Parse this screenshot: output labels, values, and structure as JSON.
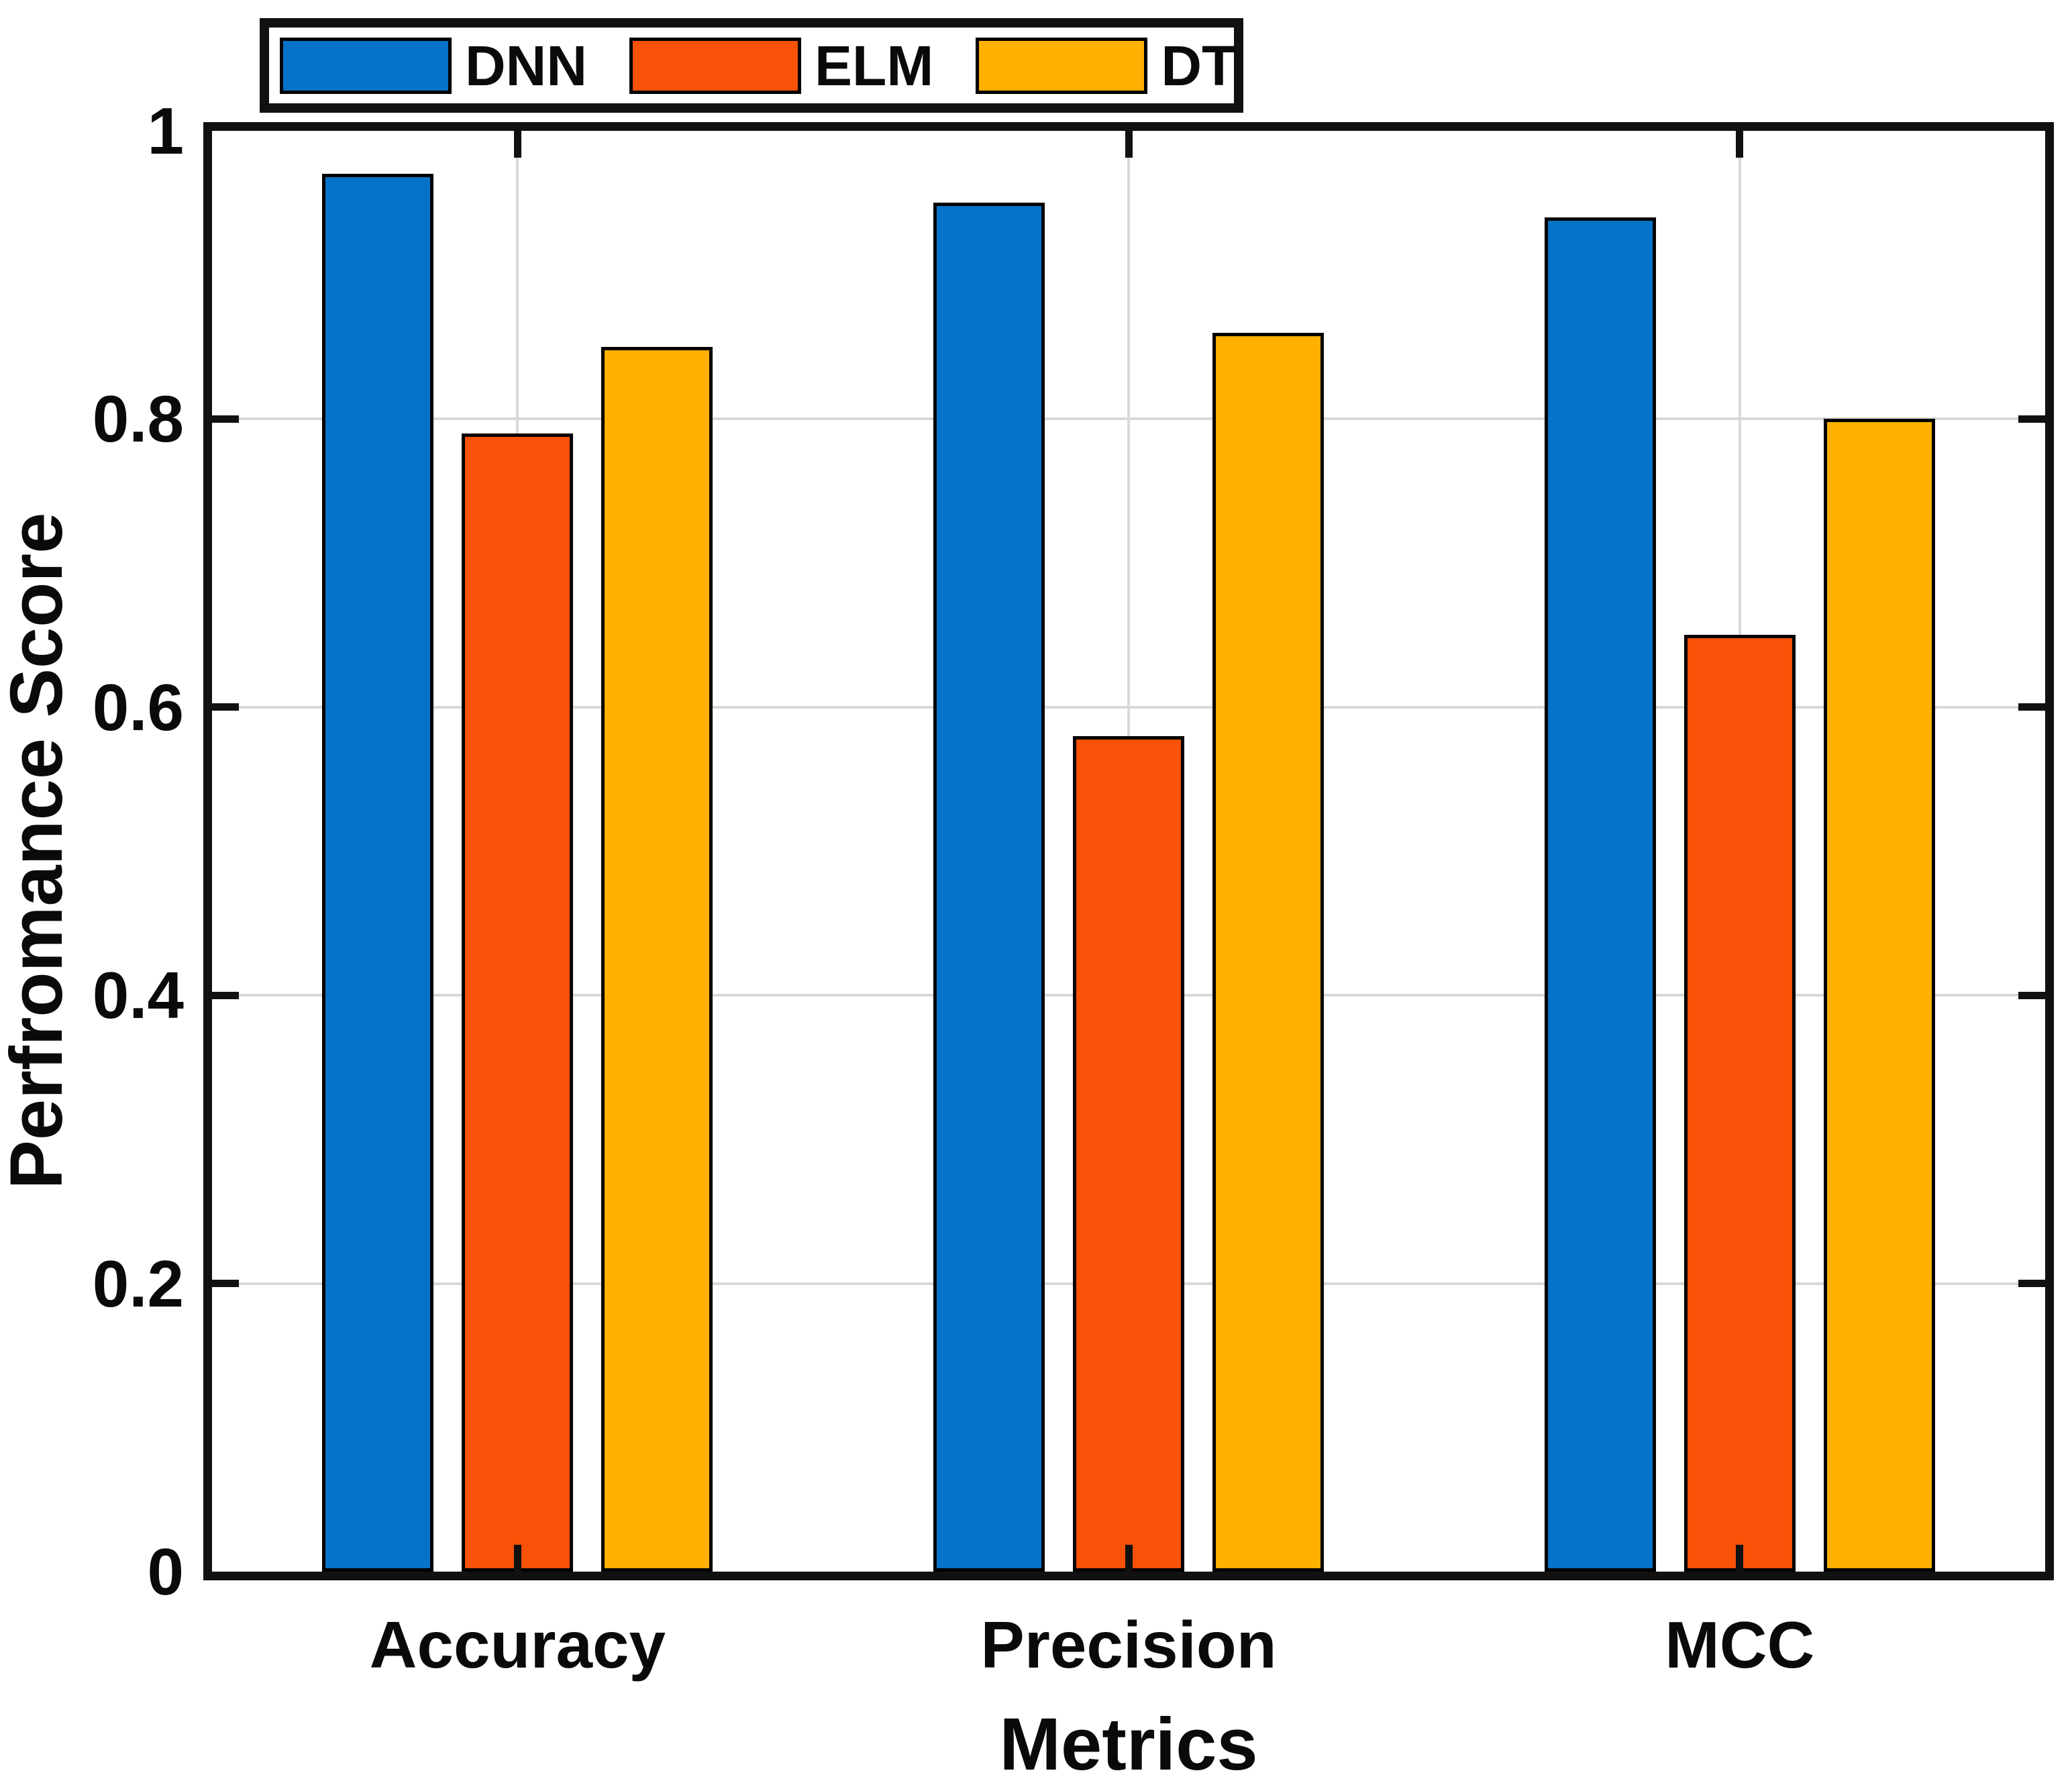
{
  "figure": {
    "background": "#ffffff"
  },
  "chart_data": {
    "type": "bar",
    "title": "",
    "xlabel": "Metrics",
    "ylabel": "Perfromance Score",
    "categories": [
      "Accuracy",
      "Precision",
      "MCC"
    ],
    "series": [
      {
        "name": "DNN",
        "color": "#0673c8",
        "values": [
          0.97,
          0.95,
          0.94
        ]
      },
      {
        "name": "ELM",
        "color": "#f85108",
        "values": [
          0.79,
          0.58,
          0.65
        ]
      },
      {
        "name": "DT",
        "color": "#ffb001",
        "values": [
          0.85,
          0.86,
          0.8
        ]
      }
    ],
    "ylim": [
      0,
      1
    ],
    "yticks": [
      0,
      0.2,
      0.4,
      0.6,
      0.8,
      1
    ],
    "ytick_labels": [
      "0",
      "0.2",
      "0.4",
      "0.6",
      "0.8",
      "1"
    ],
    "grid": true,
    "legend_position": "top-left-outside",
    "bar_edge_color": "#000000"
  },
  "colors": {
    "axis": "#111111",
    "grid": "#d8d8d8",
    "text": "#0a0a0a",
    "background": "#ffffff"
  }
}
